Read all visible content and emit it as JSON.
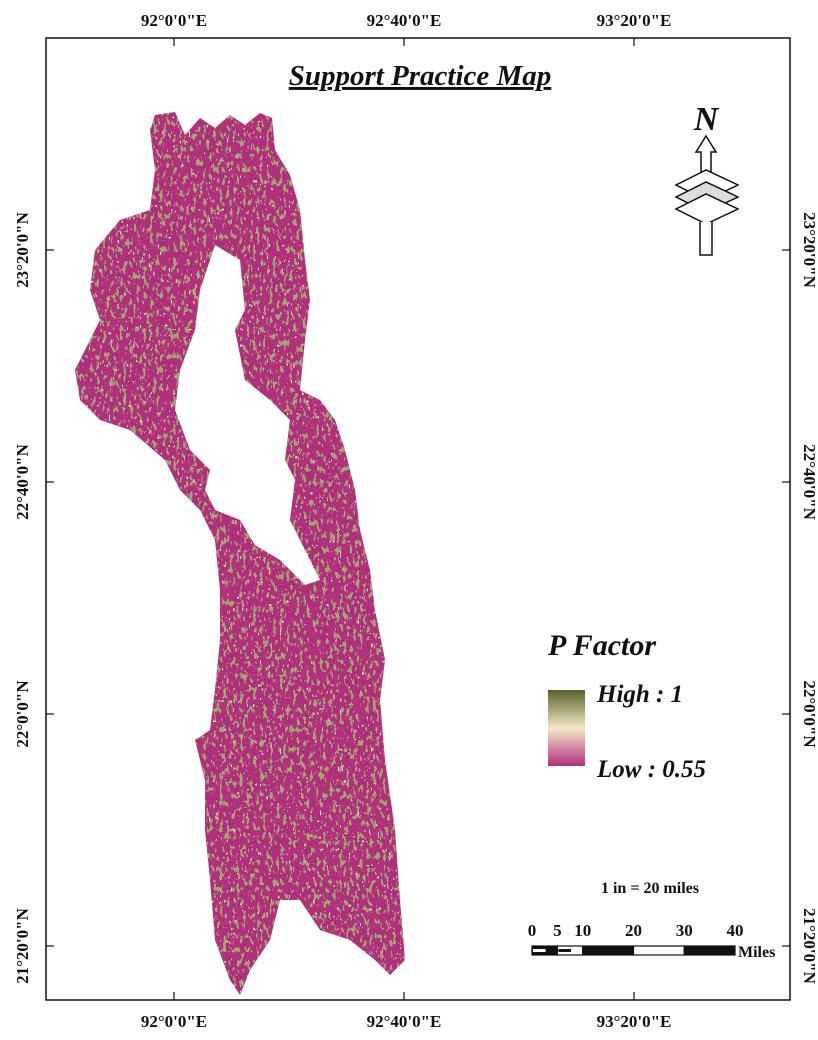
{
  "title": "Support Practice Map",
  "graticule": {
    "top": [
      "92°0'0\"E",
      "92°40'0\"E",
      "93°20'0\"E"
    ],
    "bottom": [
      "92°0'0\"E",
      "92°40'0\"E",
      "93°20'0\"E"
    ],
    "left": [
      "23°20'0\"N",
      "22°40'0\"N",
      "22°0'0\"N",
      "21°20'0\"N"
    ],
    "right": [
      "23°20'0\"N",
      "22°40'0\"N",
      "22°0'0\"N",
      "21°20'0\"N"
    ]
  },
  "north_arrow": "N",
  "legend": {
    "title": "P Factor",
    "high": "High : 1",
    "low": "Low : 0.55"
  },
  "scale": {
    "ratio": "1 in = 20 miles",
    "ticks": [
      0,
      5,
      10,
      20,
      30,
      40
    ],
    "unit": "Miles"
  }
}
